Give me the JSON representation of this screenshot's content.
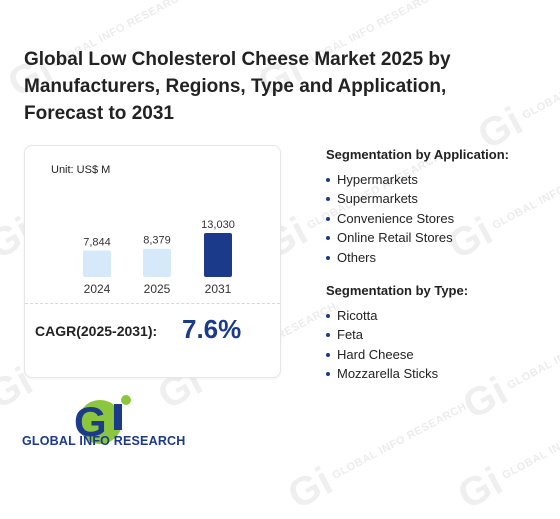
{
  "title": "Global Low Cholesterol Cheese Market 2025 by Manufacturers, Regions, Type and Application, Forecast to 2031",
  "unit": "Unit: US$ M",
  "cagr_label": "CAGR(2025-2031):",
  "cagr_value": "7.6%",
  "chart_data": {
    "type": "bar",
    "categories": [
      "2024",
      "2025",
      "2031"
    ],
    "values": [
      7844,
      8379,
      13030
    ],
    "value_labels": [
      "7,844",
      "8,379",
      "13,030"
    ],
    "colors": [
      "#d6e9fb",
      "#d6e9fb",
      "#1b3a8a"
    ],
    "unit": "US$ M"
  },
  "application": {
    "heading": "Segmentation by Application:",
    "items": [
      "Hypermarkets",
      "Supermarkets",
      "Convenience Stores",
      "Online Retail Stores",
      "Others"
    ]
  },
  "type_seg": {
    "heading": "Segmentation by Type:",
    "items": [
      "Ricotta",
      "Feta",
      "Hard Cheese",
      "Mozzarella Sticks"
    ]
  },
  "logo_text": "GLOBAL INFO RESEARCH",
  "watermark": "GLOBAL INFO RESEARCH"
}
